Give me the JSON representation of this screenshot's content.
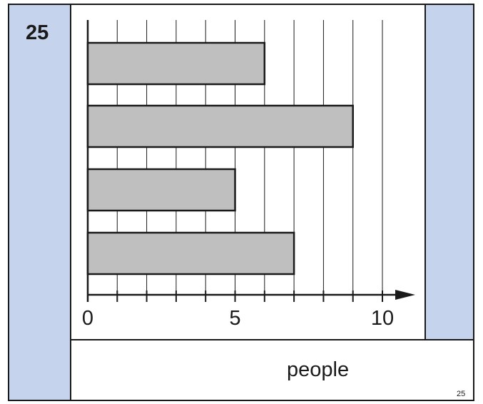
{
  "question": {
    "number": "25"
  },
  "footer": {
    "unit_label": "people",
    "page_number": "25"
  },
  "colors": {
    "accent": "#c5d3ec",
    "bar_fill": "#bfbfbf",
    "ink": "#1a1a1a"
  },
  "chart_data": {
    "type": "bar",
    "orientation": "horizontal",
    "categories": [
      "",
      "",
      "",
      ""
    ],
    "values": [
      6,
      9,
      5,
      7
    ],
    "xlim": [
      0,
      10
    ],
    "xticks": [
      0,
      5,
      10
    ],
    "xlabel": "people",
    "ylabel": "",
    "title": "",
    "grid": true,
    "grid_step": 1
  }
}
